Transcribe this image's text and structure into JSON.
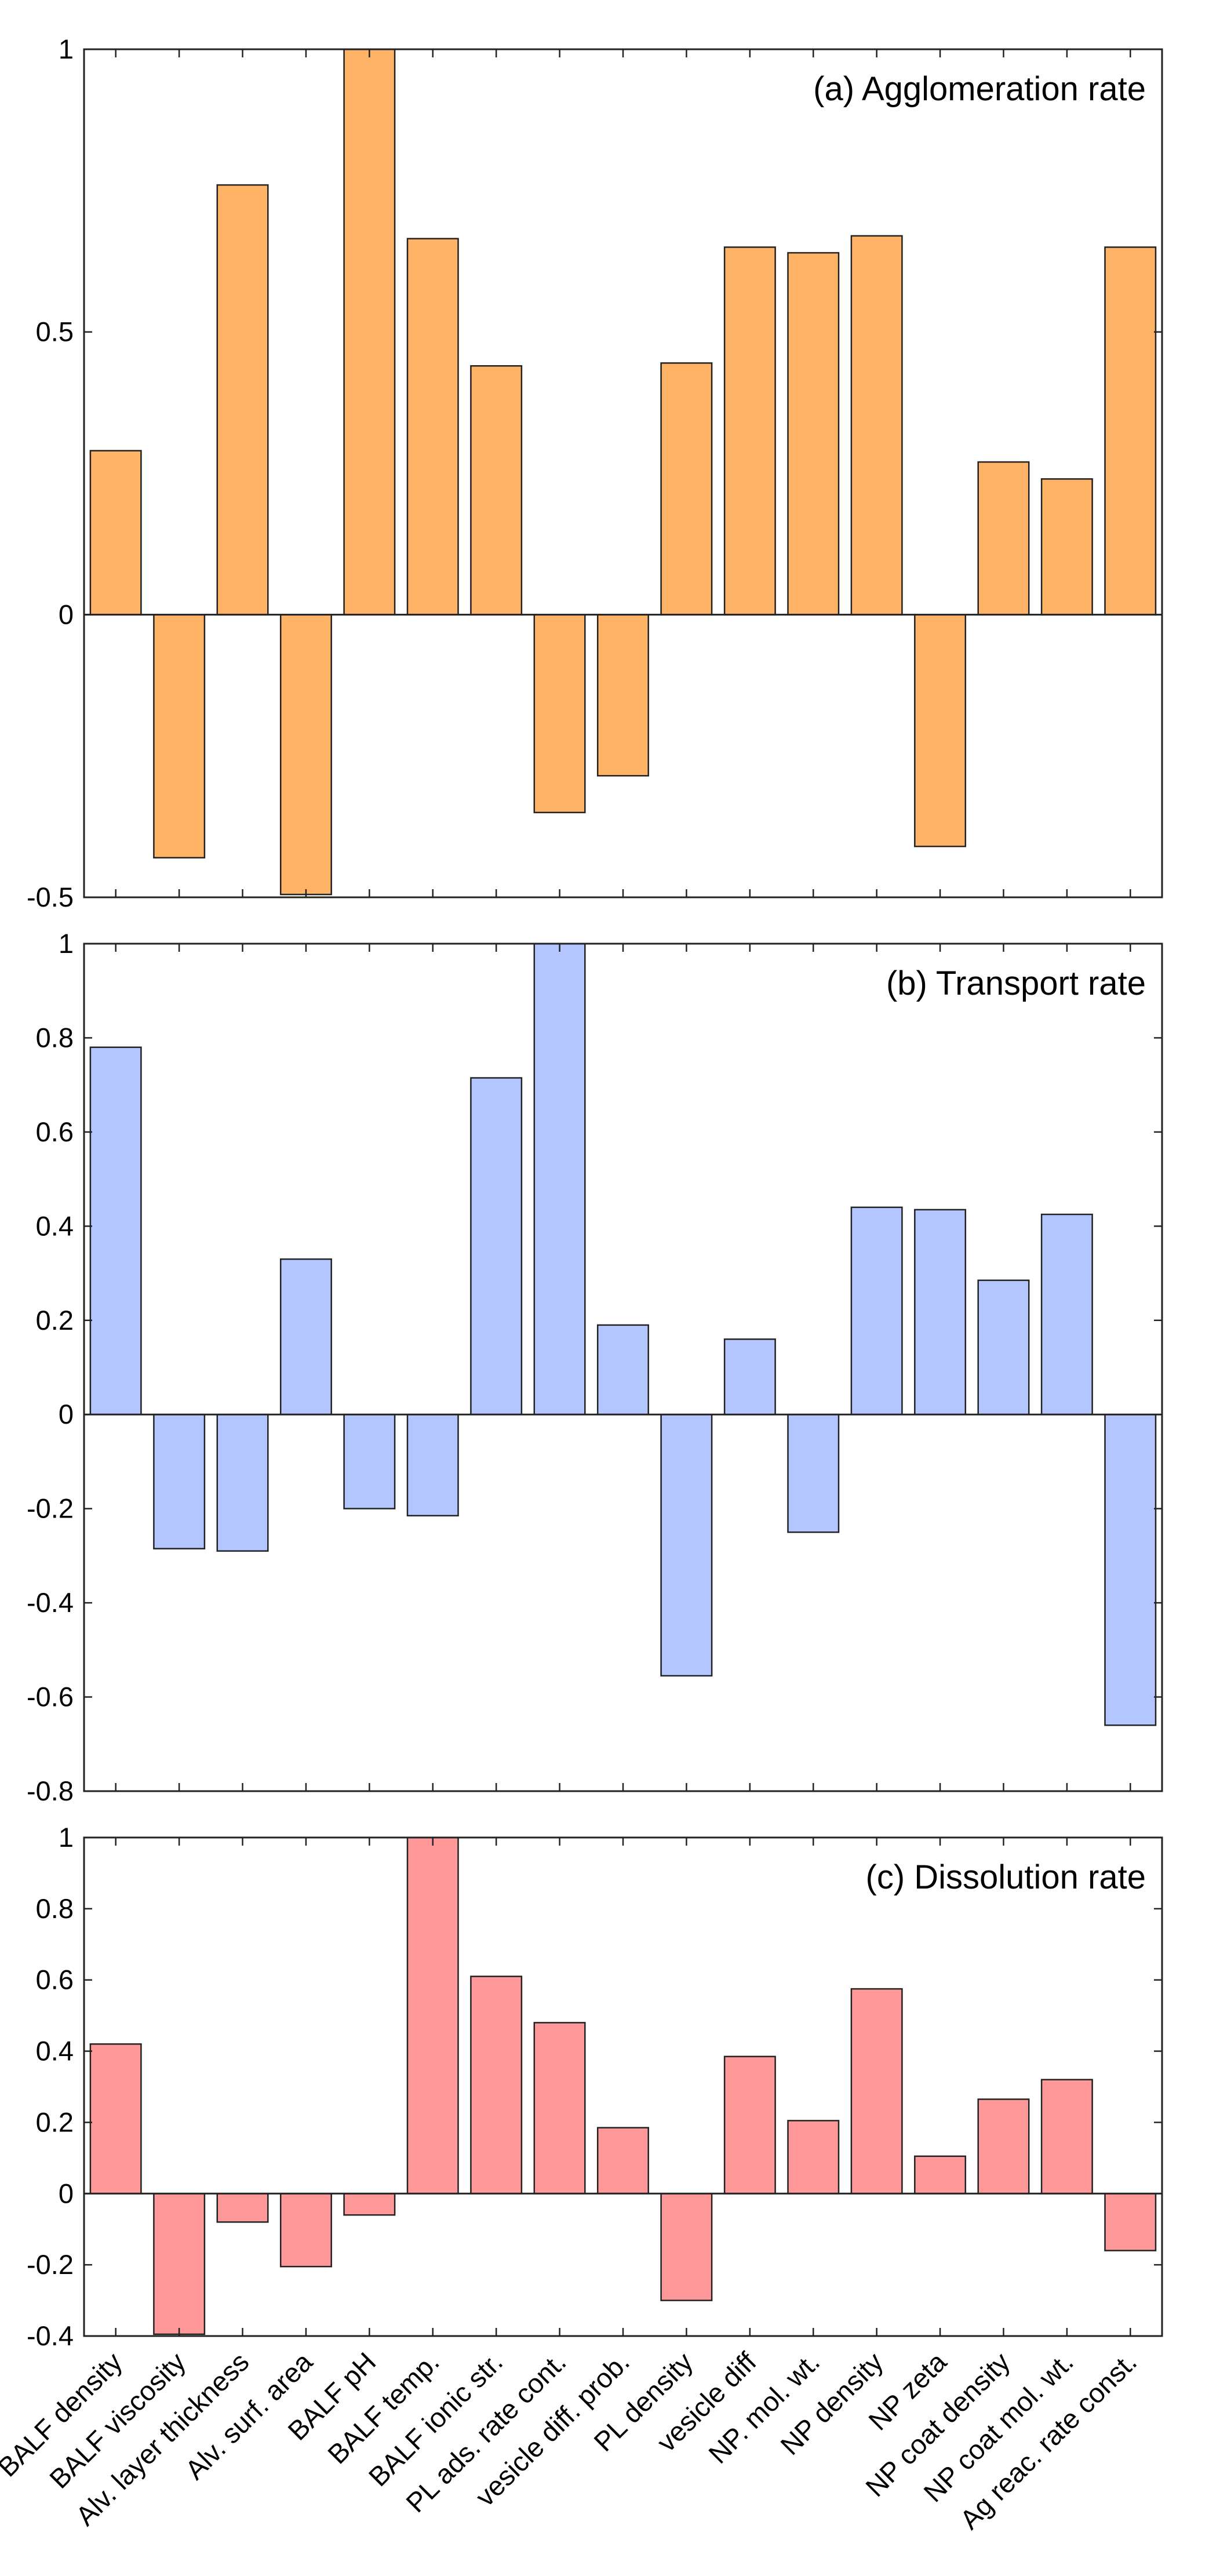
{
  "chart_data": {
    "type": "bar",
    "categories": [
      "BALF density",
      "BALF viscosity",
      "Alv. layer thickness",
      "Alv. surf. area",
      "BALF pH",
      "BALF temp.",
      "BALF ionic str.",
      "PL ads. rate cont.",
      "vesicle diff. prob.",
      "PL density",
      "vesicle diff",
      "NP. mol. wt.",
      "NP density",
      "NP zeta",
      "NP coat density",
      "NP coat mol. wt.",
      "Ag reac. rate const."
    ],
    "panels": [
      {
        "title": "(a) Agglomeration rate",
        "color": "#ffb366",
        "ylim": [
          -0.5,
          1
        ],
        "yticks": [
          -0.5,
          0,
          0.5,
          1
        ],
        "ytick_labels": [
          "-0.5",
          "0",
          "0.5",
          "1"
        ],
        "values": [
          0.29,
          -0.43,
          0.76,
          -0.495,
          1.0,
          0.665,
          0.44,
          -0.35,
          -0.285,
          0.445,
          0.65,
          0.64,
          0.67,
          -0.41,
          0.27,
          0.24,
          0.65
        ]
      },
      {
        "title": "(b) Transport rate",
        "color": "#b3c6ff",
        "ylim": [
          -0.8,
          1
        ],
        "yticks": [
          -0.8,
          -0.6,
          -0.4,
          -0.2,
          0,
          0.2,
          0.4,
          0.6,
          0.8,
          1
        ],
        "ytick_labels": [
          "-0.8",
          "-0.6",
          "-0.4",
          "-0.2",
          "0",
          "0.2",
          "0.4",
          "0.6",
          "0.8",
          "1"
        ],
        "values": [
          0.78,
          -0.285,
          -0.29,
          0.33,
          -0.2,
          -0.215,
          0.715,
          1.0,
          0.19,
          -0.555,
          0.16,
          -0.25,
          0.44,
          0.435,
          0.285,
          0.425,
          -0.66
        ]
      },
      {
        "title": "(c) Dissolution rate",
        "color": "#ff9999",
        "ylim": [
          -0.4,
          1
        ],
        "yticks": [
          -0.4,
          -0.2,
          0,
          0.2,
          0.4,
          0.6,
          0.8,
          1
        ],
        "ytick_labels": [
          "-0.4",
          "-0.2",
          "0",
          "0.2",
          "0.4",
          "0.6",
          "0.8",
          "1"
        ],
        "values": [
          0.42,
          -0.395,
          -0.08,
          -0.205,
          -0.06,
          1.0,
          0.61,
          0.48,
          0.185,
          -0.3,
          0.385,
          0.205,
          0.575,
          0.105,
          0.265,
          0.32,
          -0.16
        ]
      }
    ]
  }
}
